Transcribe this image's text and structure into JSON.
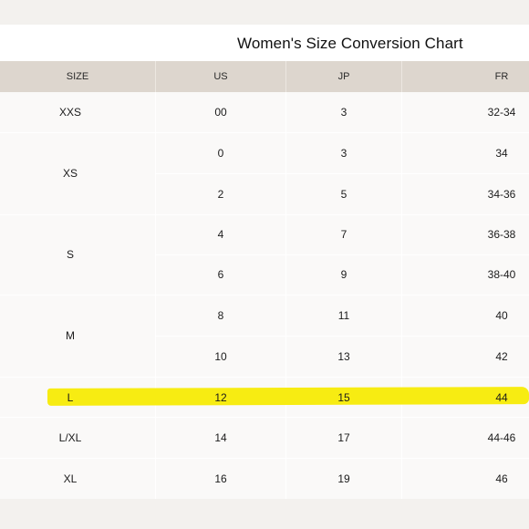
{
  "title": "Women's Size Conversion Chart",
  "columns": [
    "SIZE",
    "US",
    "JP",
    "FR"
  ],
  "size_groups": [
    {
      "label": "XXS"
    },
    {
      "label": "XS"
    },
    {
      "label": "S"
    },
    {
      "label": "M"
    },
    {
      "label": "L"
    },
    {
      "label": "L/XL"
    },
    {
      "label": "XL"
    }
  ],
  "rows": [
    {
      "us": "00",
      "jp": "3",
      "fr": "32-34"
    },
    {
      "us": "0",
      "jp": "3",
      "fr": "34"
    },
    {
      "us": "2",
      "jp": "5",
      "fr": "34-36"
    },
    {
      "us": "4",
      "jp": "7",
      "fr": "36-38"
    },
    {
      "us": "6",
      "jp": "9",
      "fr": "38-40"
    },
    {
      "us": "8",
      "jp": "11",
      "fr": "40"
    },
    {
      "us": "10",
      "jp": "13",
      "fr": "42"
    },
    {
      "us": "12",
      "jp": "15",
      "fr": "44"
    },
    {
      "us": "14",
      "jp": "17",
      "fr": "44-46"
    },
    {
      "us": "16",
      "jp": "19",
      "fr": "46"
    }
  ],
  "highlight": {
    "row_label": "L",
    "color": "#f7ec12"
  }
}
